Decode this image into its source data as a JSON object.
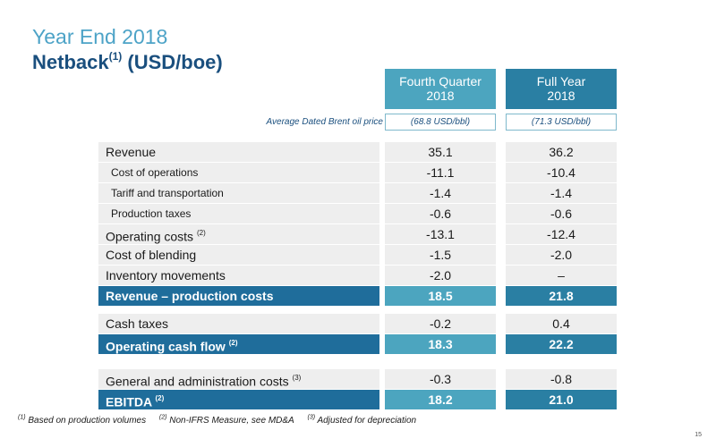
{
  "header": {
    "title_line1": "Year End 2018",
    "title_line2": "Netback",
    "title_line2_sup": "(1)",
    "title_line2_unit": "(USD/boe)"
  },
  "columns": {
    "q4_line1": "Fourth Quarter",
    "q4_line2": "2018",
    "fy_line1": "Full Year",
    "fy_line2": "2018"
  },
  "brent": {
    "label": "Average Dated Brent oil price",
    "q4": "(68.8 USD/bbl)",
    "fy": "(71.3 USD/bbl)"
  },
  "rows": [
    {
      "label": "Revenue",
      "sup": "",
      "q4": "35.1",
      "fy": "36.2"
    },
    {
      "label": "Cost of operations",
      "sup": "",
      "q4": "-11.1",
      "fy": "-10.4"
    },
    {
      "label": "Tariff and transportation",
      "sup": "",
      "q4": "-1.4",
      "fy": "-1.4"
    },
    {
      "label": "Production taxes",
      "sup": "",
      "q4": "-0.6",
      "fy": "-0.6"
    },
    {
      "label": "Operating costs",
      "sup": "(2)",
      "q4": "-13.1",
      "fy": "-12.4"
    },
    {
      "label": "Cost of blending",
      "sup": "",
      "q4": "-1.5",
      "fy": "-2.0"
    },
    {
      "label": "Inventory movements",
      "sup": "",
      "q4": "-2.0",
      "fy": "–"
    },
    {
      "label": "Revenue – production costs",
      "sup": "",
      "q4": "18.5",
      "fy": "21.8"
    },
    {
      "label": "Cash taxes",
      "sup": "",
      "q4": "-0.2",
      "fy": "0.4"
    },
    {
      "label": "Operating cash flow",
      "sup": "(2)",
      "q4": "18.3",
      "fy": "22.2"
    },
    {
      "label": "General and administration costs",
      "sup": "(3)",
      "q4": "-0.3",
      "fy": "-0.8"
    },
    {
      "label": "EBITDA",
      "sup": "(2)",
      "q4": "18.2",
      "fy": "21.0"
    }
  ],
  "footnotes": {
    "n1_sup": "(1)",
    "n1": "Based on production volumes",
    "n2_sup": "(2)",
    "n2": "Non-IFRS Measure, see MD&A",
    "n3_sup": "(3)",
    "n3": "Adjusted for depreciation"
  },
  "page_number": "15",
  "colors": {
    "title_light": "#4da3c7",
    "title_dark": "#1a4f7e",
    "q4_header": "#4ca5bf",
    "fy_header": "#2a7fa3",
    "highlight_row": "#1f6d9b",
    "row_bg": "#eeeeee"
  }
}
